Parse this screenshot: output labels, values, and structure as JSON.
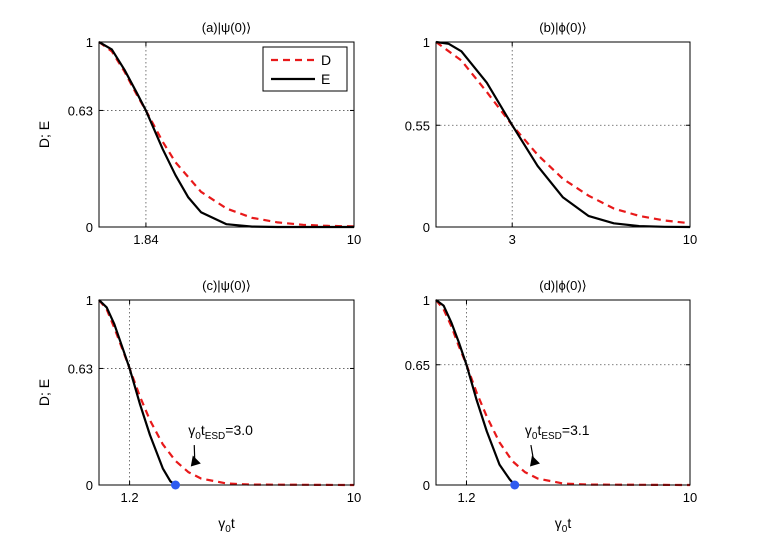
{
  "chart_data": [
    {
      "type": "line",
      "title": "(a)|ψ(0)⟩",
      "ylabel": "D; E",
      "xlabel": "",
      "xlim": [
        0,
        10
      ],
      "ylim": [
        0,
        1
      ],
      "xtick_labels": [
        "1.84",
        "10"
      ],
      "ytick_labels": [
        "1",
        "0.63",
        "0"
      ],
      "crossing": {
        "x": 1.84,
        "y": 0.63
      },
      "legend": {
        "position": "top-right",
        "entries": [
          "D",
          "E"
        ]
      },
      "series": [
        {
          "name": "D",
          "style": "dashed",
          "color": "#e8191a",
          "x": [
            0,
            0.5,
            1,
            1.5,
            1.84,
            2.5,
            3,
            4,
            5,
            6,
            7,
            8,
            9,
            10
          ],
          "y": [
            1,
            0.95,
            0.84,
            0.71,
            0.63,
            0.46,
            0.35,
            0.19,
            0.1,
            0.05,
            0.025,
            0.012,
            0.006,
            0.003
          ]
        },
        {
          "name": "E",
          "style": "solid",
          "color": "#000000",
          "x": [
            0,
            0.5,
            1,
            1.5,
            1.84,
            2.5,
            3,
            3.5,
            4,
            5,
            6,
            7,
            8,
            10
          ],
          "y": [
            1,
            0.96,
            0.85,
            0.72,
            0.63,
            0.42,
            0.28,
            0.16,
            0.08,
            0.015,
            0.002,
            0,
            0,
            0
          ]
        }
      ]
    },
    {
      "type": "line",
      "title": "(b)|ϕ(0)⟩",
      "ylabel": "",
      "xlabel": "",
      "xlim": [
        0,
        10
      ],
      "ylim": [
        0,
        1
      ],
      "xtick_labels": [
        "3",
        "10"
      ],
      "ytick_labels": [
        "1",
        "0.55",
        "0"
      ],
      "crossing": {
        "x": 3,
        "y": 0.55
      },
      "series": [
        {
          "name": "D",
          "style": "dashed",
          "color": "#e8191a",
          "x": [
            0,
            1,
            2,
            3,
            4,
            5,
            6,
            7,
            8,
            9,
            10
          ],
          "y": [
            1,
            0.9,
            0.73,
            0.55,
            0.39,
            0.26,
            0.17,
            0.1,
            0.06,
            0.035,
            0.02
          ]
        },
        {
          "name": "E",
          "style": "solid",
          "color": "#000000",
          "x": [
            0,
            0.5,
            1,
            2,
            3,
            4,
            5,
            6,
            7,
            8,
            9,
            10
          ],
          "y": [
            1,
            0.99,
            0.95,
            0.78,
            0.55,
            0.33,
            0.16,
            0.06,
            0.02,
            0.005,
            0.001,
            0
          ]
        }
      ]
    },
    {
      "type": "line",
      "title": "(c)|ψ(0)⟩",
      "ylabel": "D; E",
      "xlabel": "γ",
      "xlabel_sub": "0",
      "xlabel_tail": "t",
      "xlim": [
        0,
        10
      ],
      "ylim": [
        0,
        1
      ],
      "xtick_labels": [
        "1.2",
        "10"
      ],
      "ytick_labels": [
        "1",
        "0.63",
        "0"
      ],
      "crossing": {
        "x": 1.2,
        "y": 0.63
      },
      "esd": {
        "x": 3.0,
        "y": 0
      },
      "annotation": {
        "pre": "γ",
        "sub1": "0",
        "mid": "t",
        "sub2": "ESD",
        "post": "=3.0",
        "text_x": 3.5,
        "text_y": 0.27
      },
      "series": [
        {
          "name": "D",
          "style": "dashed",
          "color": "#e8191a",
          "x": [
            0,
            0.3,
            0.6,
            0.9,
            1.2,
            1.6,
            2,
            2.5,
            3,
            3.5,
            4,
            5,
            6,
            10
          ],
          "y": [
            1,
            0.95,
            0.85,
            0.74,
            0.63,
            0.48,
            0.35,
            0.22,
            0.13,
            0.07,
            0.035,
            0.008,
            0.002,
            0
          ]
        },
        {
          "name": "E",
          "style": "solid",
          "color": "#000000",
          "x": [
            0,
            0.3,
            0.6,
            0.9,
            1.2,
            1.6,
            2,
            2.5,
            2.8,
            3.0
          ],
          "y": [
            1,
            0.96,
            0.87,
            0.75,
            0.63,
            0.44,
            0.27,
            0.09,
            0.02,
            0
          ]
        }
      ]
    },
    {
      "type": "line",
      "title": "(d)|ϕ(0)⟩",
      "ylabel": "",
      "xlabel": "γ",
      "xlabel_sub": "0",
      "xlabel_tail": "t",
      "xlim": [
        0,
        10
      ],
      "ylim": [
        0,
        1
      ],
      "xtick_labels": [
        "1.2",
        "10"
      ],
      "ytick_labels": [
        "1",
        "0.65",
        "0"
      ],
      "crossing": {
        "x": 1.2,
        "y": 0.65
      },
      "esd": {
        "x": 3.1,
        "y": 0
      },
      "annotation": {
        "pre": "γ",
        "sub1": "0",
        "mid": "t",
        "sub2": "ESD",
        "post": "=3.1",
        "text_x": 3.5,
        "text_y": 0.27
      },
      "series": [
        {
          "name": "D",
          "style": "dashed",
          "color": "#e8191a",
          "x": [
            0,
            0.3,
            0.6,
            0.9,
            1.2,
            1.6,
            2,
            2.5,
            3,
            3.5,
            4,
            5,
            6,
            10
          ],
          "y": [
            1,
            0.95,
            0.86,
            0.75,
            0.65,
            0.5,
            0.37,
            0.23,
            0.13,
            0.07,
            0.035,
            0.008,
            0.002,
            0
          ]
        },
        {
          "name": "E",
          "style": "solid",
          "color": "#000000",
          "x": [
            0,
            0.3,
            0.6,
            0.9,
            1.2,
            1.6,
            2,
            2.5,
            2.9,
            3.1
          ],
          "y": [
            1,
            0.97,
            0.88,
            0.77,
            0.65,
            0.46,
            0.29,
            0.11,
            0.03,
            0
          ]
        }
      ]
    }
  ]
}
